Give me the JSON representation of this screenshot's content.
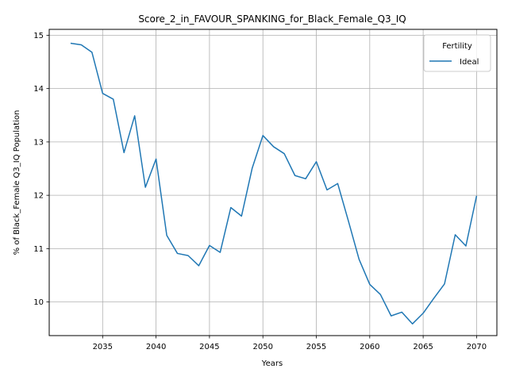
{
  "chart_data": {
    "type": "line",
    "title": "Score_2_in_FAVOUR_SPANKING_for_Black_Female_Q3_IQ",
    "xlabel": "Years",
    "ylabel": "% of Black_Female Q3_IQ Population",
    "xlim": [
      2030.0,
      2071.9
    ],
    "ylim": [
      9.37,
      15.11
    ],
    "xticks": [
      2035,
      2040,
      2045,
      2050,
      2055,
      2060,
      2065,
      2070
    ],
    "yticks": [
      10,
      11,
      12,
      13,
      14,
      15
    ],
    "grid": true,
    "legend": {
      "title": "Fertility",
      "position": "top-right"
    },
    "series": [
      {
        "name": "Ideal",
        "color": "#1f77b4",
        "x": [
          2032,
          2033,
          2034,
          2035,
          2036,
          2037,
          2038,
          2039,
          2040,
          2041,
          2042,
          2043,
          2044,
          2045,
          2046,
          2047,
          2048,
          2049,
          2050,
          2051,
          2052,
          2053,
          2054,
          2055,
          2056,
          2057,
          2058,
          2059,
          2060,
          2061,
          2062,
          2063,
          2064,
          2065,
          2066,
          2067,
          2068,
          2069,
          2070
        ],
        "y": [
          14.85,
          14.82,
          14.68,
          13.91,
          13.8,
          12.8,
          13.49,
          12.15,
          12.68,
          11.25,
          10.91,
          10.87,
          10.68,
          11.06,
          10.93,
          11.77,
          11.61,
          12.51,
          13.12,
          12.91,
          12.78,
          12.37,
          12.31,
          12.63,
          12.1,
          12.22,
          11.52,
          10.8,
          10.33,
          10.14,
          9.74,
          9.81,
          9.59,
          9.79,
          10.07,
          10.34,
          11.26,
          11.05,
          11.99
        ]
      }
    ]
  }
}
